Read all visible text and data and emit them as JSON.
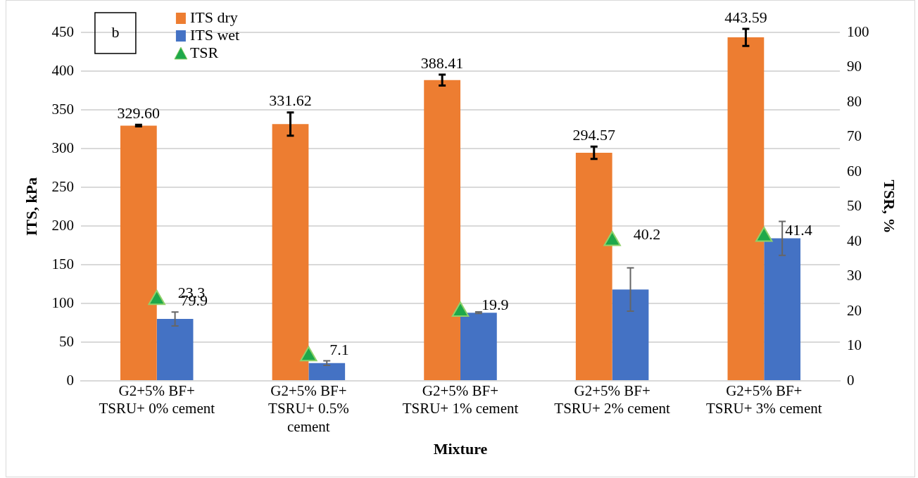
{
  "chart_data": {
    "type": "bar",
    "categories": [
      "G2+5% BF+ TSRU+ 0% cement",
      "G2+5% BF+ TSRU+ 0.5% cement",
      "G2+5% BF+ TSRU+ 1% cement",
      "G2+5% BF+ TSRU+ 2% cement",
      "G2+5% BF+ TSRU+ 3% cement"
    ],
    "series": [
      {
        "name": "ITS dry",
        "color": "#ed7d31",
        "values": [
          329.6,
          331.62,
          388.41,
          294.57,
          443.59
        ],
        "errors": [
          1,
          15,
          7,
          8,
          11
        ],
        "value_labels": [
          "329.60",
          "331.62",
          "388.41",
          "294.57",
          "443.59"
        ]
      },
      {
        "name": "ITS wet",
        "color": "#4472c4",
        "values": [
          79.9,
          23,
          88,
          118,
          184
        ],
        "errors": [
          9,
          3,
          1,
          28,
          22
        ],
        "value_labels": [
          "79.9",
          null,
          null,
          null,
          null
        ]
      },
      {
        "name": "TSR",
        "type": "scatter",
        "axis": "y2",
        "marker": "triangle",
        "color": "#1ea84a",
        "x": [
          "G2+5% BF+ TSRU+ 0% cement",
          "G2+5% BF+ TSRU+ 0.5% cement",
          "G2+5% BF+ TSRU+ 1% cement",
          "G2+5% BF+ TSRU+ 2% cement",
          "G2+5% BF+ TSRU+ 3% cement"
        ],
        "values": [
          23.3,
          7.1,
          19.9,
          40.2,
          41.4
        ],
        "value_labels": [
          "23.3",
          "7.1",
          "19.9",
          "40.2",
          "41.4"
        ]
      }
    ],
    "xlabel": "Mixture",
    "ylabel": "ITS, kPa",
    "y2label": "TSR, %",
    "ylim": [
      0,
      450
    ],
    "yticks": [
      0,
      50,
      100,
      150,
      200,
      250,
      300,
      350,
      400,
      450
    ],
    "y2lim": [
      0,
      100
    ],
    "y2ticks": [
      0,
      10,
      20,
      30,
      40,
      50,
      60,
      70,
      80,
      90,
      100
    ],
    "grid": "y",
    "legend": "top left",
    "annotations": [
      "b"
    ]
  }
}
